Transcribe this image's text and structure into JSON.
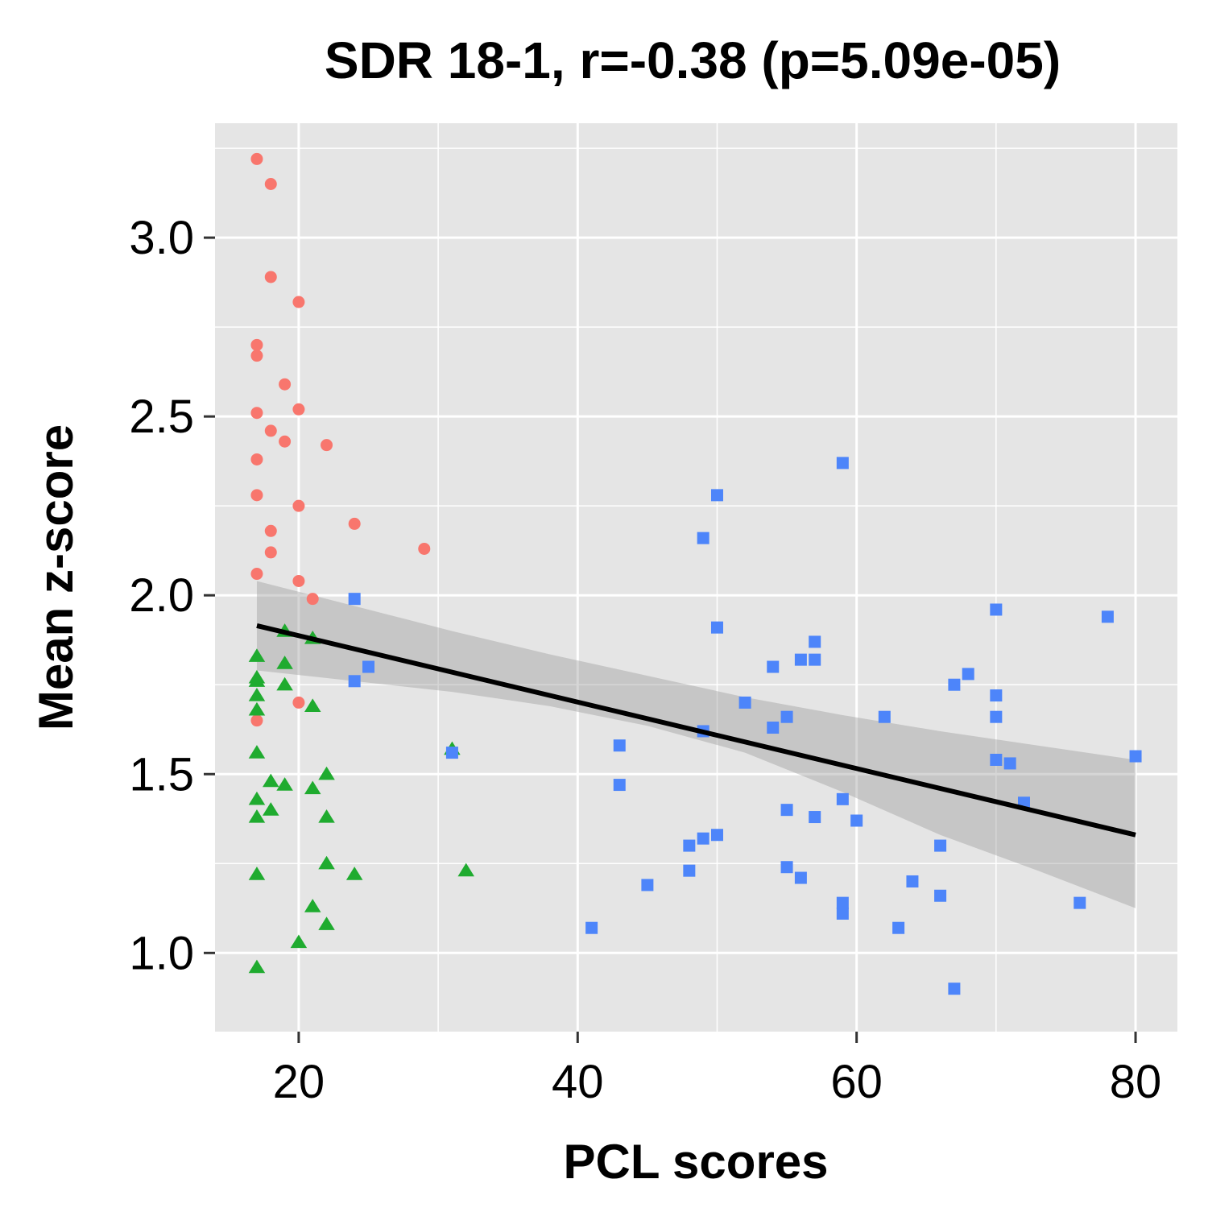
{
  "chart_data": {
    "type": "scatter",
    "title": "SDR 18-1, r=-0.38 (p=5.09e-05)",
    "xlabel": "PCL scores",
    "ylabel": "Mean z-score",
    "xlim": [
      14,
      83
    ],
    "ylim": [
      0.78,
      3.32
    ],
    "x_ticks": [
      20,
      40,
      60,
      80
    ],
    "y_ticks": [
      1.0,
      1.5,
      2.0,
      2.5,
      3.0
    ],
    "x_tick_labels": [
      "20",
      "40",
      "60",
      "80"
    ],
    "y_tick_labels": [
      "1.0",
      "1.5",
      "2.0",
      "2.5",
      "3.0"
    ],
    "grid": true,
    "legend": "none",
    "colors": {
      "panel_bg": "#e5e5e5",
      "grid": "#ffffff",
      "red": "#f8766d",
      "green": "#1fab2f",
      "blue": "#4d85fa",
      "fit_line": "#000000",
      "ribbon": "#999999"
    },
    "series": [
      {
        "shape": "circle",
        "color": "#f8766d",
        "points": [
          [
            17,
            3.22
          ],
          [
            18,
            3.15
          ],
          [
            18,
            2.89
          ],
          [
            20,
            2.82
          ],
          [
            17,
            2.7
          ],
          [
            17,
            2.67
          ],
          [
            19,
            2.59
          ],
          [
            20,
            2.52
          ],
          [
            17,
            2.51
          ],
          [
            18,
            2.46
          ],
          [
            19,
            2.43
          ],
          [
            22,
            2.42
          ],
          [
            17,
            2.38
          ],
          [
            17,
            2.28
          ],
          [
            20,
            2.25
          ],
          [
            24,
            2.2
          ],
          [
            18,
            2.18
          ],
          [
            29,
            2.13
          ],
          [
            18,
            2.12
          ],
          [
            17,
            2.06
          ],
          [
            20,
            2.04
          ],
          [
            21,
            1.99
          ],
          [
            20,
            1.7
          ],
          [
            17,
            1.65
          ]
        ]
      },
      {
        "shape": "triangle",
        "color": "#1fab2f",
        "points": [
          [
            19,
            1.9
          ],
          [
            21,
            1.88
          ],
          [
            17,
            1.83
          ],
          [
            19,
            1.81
          ],
          [
            17,
            1.77
          ],
          [
            17,
            1.76
          ],
          [
            19,
            1.75
          ],
          [
            17,
            1.72
          ],
          [
            21,
            1.69
          ],
          [
            17,
            1.68
          ],
          [
            31,
            1.57
          ],
          [
            17,
            1.56
          ],
          [
            22,
            1.5
          ],
          [
            18,
            1.48
          ],
          [
            19,
            1.47
          ],
          [
            21,
            1.46
          ],
          [
            17,
            1.43
          ],
          [
            18,
            1.4
          ],
          [
            17,
            1.38
          ],
          [
            22,
            1.38
          ],
          [
            22,
            1.25
          ],
          [
            32,
            1.23
          ],
          [
            17,
            1.22
          ],
          [
            24,
            1.22
          ],
          [
            21,
            1.13
          ],
          [
            22,
            1.08
          ],
          [
            20,
            1.03
          ],
          [
            17,
            0.96
          ]
        ]
      },
      {
        "shape": "square",
        "color": "#4d85fa",
        "points": [
          [
            59,
            2.37
          ],
          [
            50,
            2.28
          ],
          [
            49,
            2.16
          ],
          [
            24,
            1.99
          ],
          [
            70,
            1.96
          ],
          [
            78,
            1.94
          ],
          [
            50,
            1.91
          ],
          [
            57,
            1.87
          ],
          [
            56,
            1.82
          ],
          [
            57,
            1.82
          ],
          [
            25,
            1.8
          ],
          [
            54,
            1.8
          ],
          [
            68,
            1.78
          ],
          [
            24,
            1.76
          ],
          [
            67,
            1.75
          ],
          [
            70,
            1.72
          ],
          [
            52,
            1.7
          ],
          [
            55,
            1.66
          ],
          [
            62,
            1.66
          ],
          [
            70,
            1.66
          ],
          [
            54,
            1.63
          ],
          [
            49,
            1.62
          ],
          [
            43,
            1.58
          ],
          [
            31,
            1.56
          ],
          [
            80,
            1.55
          ],
          [
            70,
            1.54
          ],
          [
            71,
            1.53
          ],
          [
            43,
            1.47
          ],
          [
            59,
            1.43
          ],
          [
            72,
            1.42
          ],
          [
            55,
            1.4
          ],
          [
            57,
            1.38
          ],
          [
            60,
            1.37
          ],
          [
            50,
            1.33
          ],
          [
            49,
            1.32
          ],
          [
            48,
            1.3
          ],
          [
            66,
            1.3
          ],
          [
            55,
            1.24
          ],
          [
            48,
            1.23
          ],
          [
            56,
            1.21
          ],
          [
            64,
            1.2
          ],
          [
            45,
            1.19
          ],
          [
            66,
            1.16
          ],
          [
            76,
            1.14
          ],
          [
            59,
            1.14
          ],
          [
            59,
            1.11
          ],
          [
            41,
            1.07
          ],
          [
            63,
            1.07
          ],
          [
            67,
            0.9
          ]
        ]
      }
    ],
    "fit": {
      "x": [
        17,
        80
      ],
      "y": [
        1.915,
        1.33
      ],
      "ci_x": [
        17,
        24,
        31,
        38,
        45,
        52,
        59,
        66,
        73,
        80
      ],
      "ci_upper": [
        2.04,
        1.97,
        1.9,
        1.835,
        1.775,
        1.715,
        1.665,
        1.62,
        1.58,
        1.54
      ],
      "ci_lower": [
        1.79,
        1.76,
        1.73,
        1.69,
        1.635,
        1.56,
        1.45,
        1.33,
        1.23,
        1.125
      ]
    }
  }
}
